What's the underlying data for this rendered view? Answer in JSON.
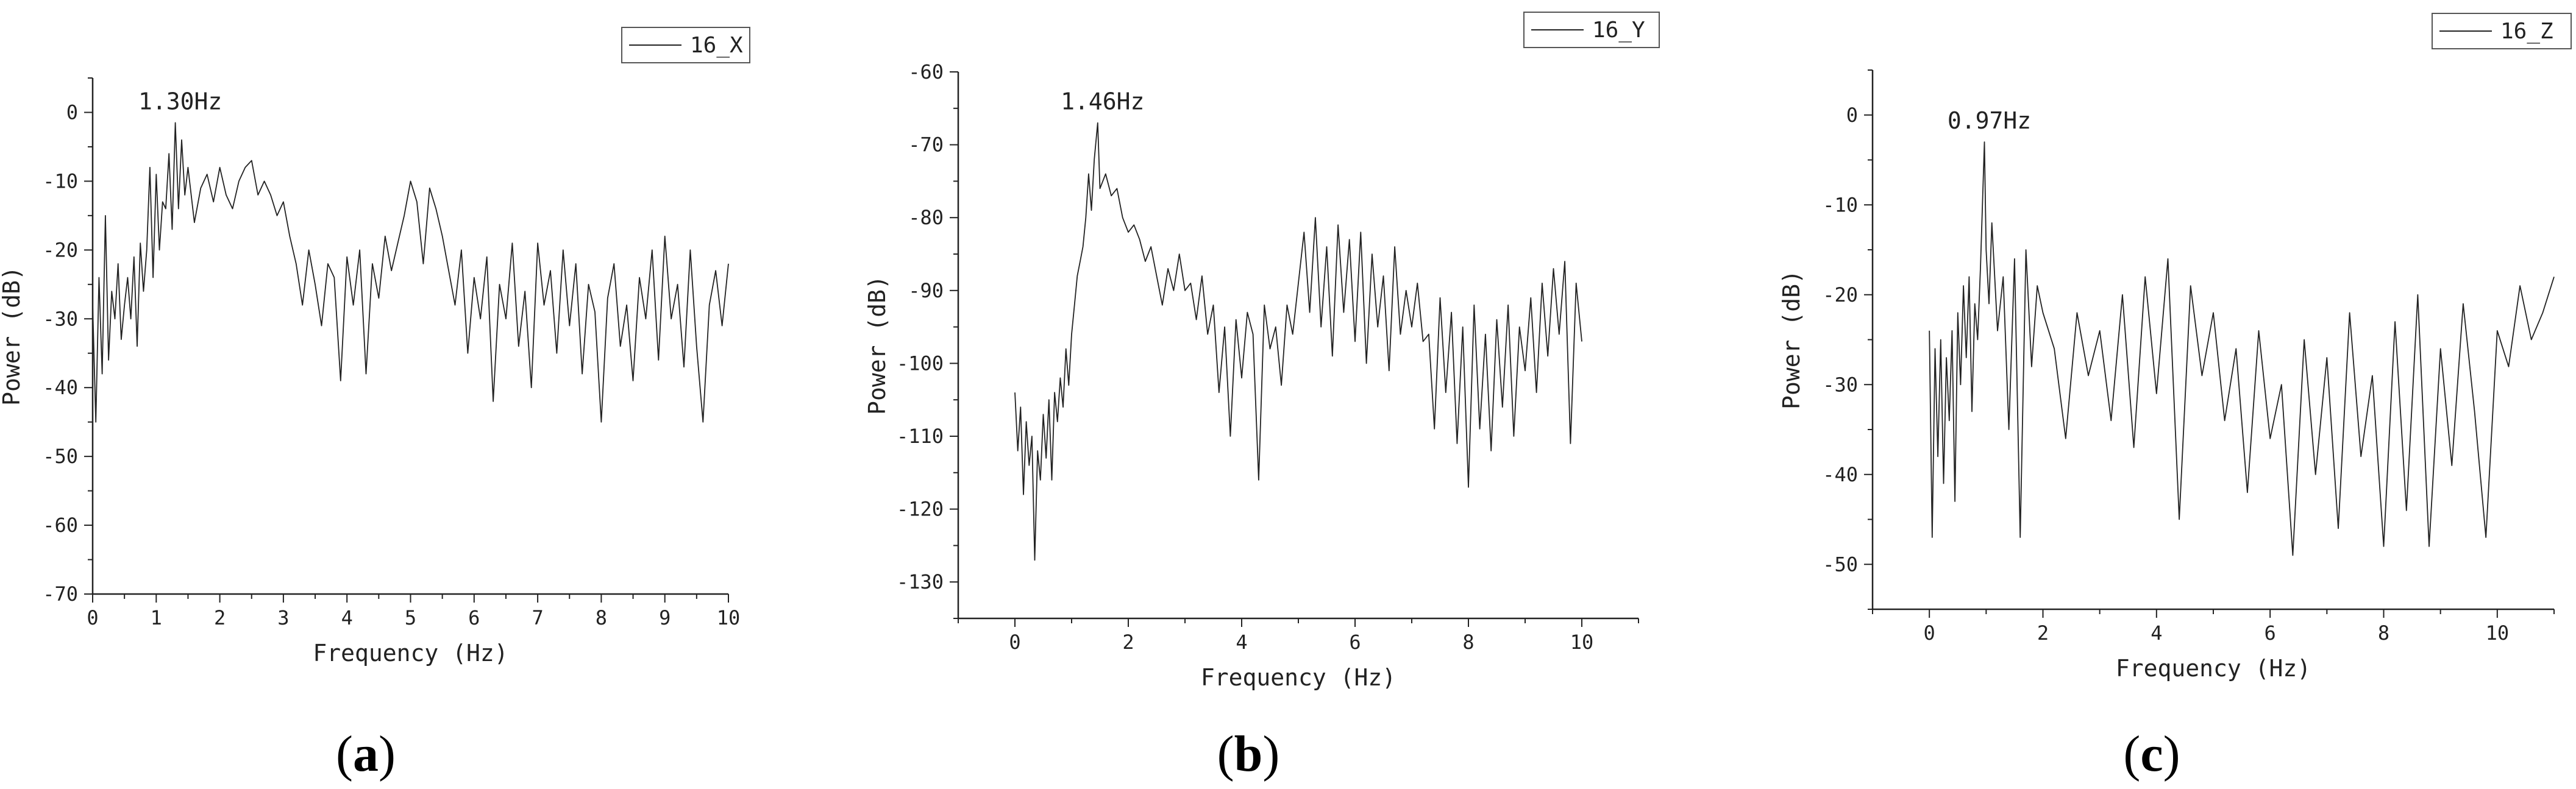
{
  "figure": {
    "panels": [
      {
        "label_open": "(",
        "label_letter": "a",
        "label_close": ")"
      },
      {
        "label_open": "(",
        "label_letter": "b",
        "label_close": ")"
      },
      {
        "label_open": "(",
        "label_letter": "c",
        "label_close": ")"
      }
    ]
  },
  "chart_data": [
    {
      "type": "line",
      "title": "",
      "xlabel": "Frequency (Hz)",
      "ylabel": "Power (dB)",
      "xlim": [
        0,
        10
      ],
      "ylim": [
        -70,
        5
      ],
      "xticks": [
        0,
        1,
        2,
        3,
        4,
        5,
        6,
        7,
        8,
        9,
        10
      ],
      "xtick_labels": [
        "0",
        "1",
        "2",
        "3",
        "4",
        "5",
        "6",
        "7",
        "8",
        "9",
        "10"
      ],
      "yticks": [
        0,
        -10,
        -20,
        -30,
        -40,
        -50,
        -60,
        -70
      ],
      "ytick_labels": [
        "0",
        "-10",
        "-20",
        "-30",
        "-40",
        "-50",
        "-60",
        "-70"
      ],
      "grid": false,
      "legend_position": "top-right",
      "line_color": "#222222",
      "annotation": {
        "text": "1.30Hz",
        "x": 1.3,
        "y": -1.5
      },
      "series": [
        {
          "name": "16_X",
          "x": [
            0,
            0.05,
            0.1,
            0.15,
            0.2,
            0.25,
            0.3,
            0.35,
            0.4,
            0.45,
            0.5,
            0.55,
            0.6,
            0.65,
            0.7,
            0.75,
            0.8,
            0.85,
            0.9,
            0.95,
            1,
            1.05,
            1.1,
            1.15,
            1.2,
            1.25,
            1.3,
            1.35,
            1.4,
            1.45,
            1.5,
            1.6,
            1.7,
            1.8,
            1.9,
            2,
            2.1,
            2.2,
            2.3,
            2.4,
            2.5,
            2.6,
            2.7,
            2.8,
            2.9,
            3,
            3.1,
            3.2,
            3.3,
            3.4,
            3.5,
            3.6,
            3.7,
            3.8,
            3.9,
            4,
            4.1,
            4.2,
            4.3,
            4.4,
            4.5,
            4.6,
            4.7,
            4.8,
            4.9,
            5,
            5.1,
            5.2,
            5.3,
            5.4,
            5.5,
            5.6,
            5.7,
            5.8,
            5.9,
            6,
            6.1,
            6.2,
            6.3,
            6.4,
            6.5,
            6.6,
            6.7,
            6.8,
            6.9,
            7,
            7.1,
            7.2,
            7.3,
            7.4,
            7.5,
            7.6,
            7.7,
            7.8,
            7.9,
            8,
            8.1,
            8.2,
            8.3,
            8.4,
            8.5,
            8.6,
            8.7,
            8.8,
            8.9,
            9,
            9.1,
            9.2,
            9.3,
            9.4,
            9.5,
            9.6,
            9.7,
            9.8,
            9.9,
            10
          ],
          "y": [
            -28,
            -45,
            -24,
            -38,
            -15,
            -36,
            -26,
            -30,
            -22,
            -33,
            -28,
            -24,
            -30,
            -21,
            -34,
            -19,
            -26,
            -20,
            -8,
            -24,
            -9,
            -20,
            -13,
            -14,
            -6,
            -17,
            -1.5,
            -14,
            -4,
            -12,
            -8,
            -16,
            -11,
            -9,
            -13,
            -8,
            -12,
            -14,
            -10,
            -8,
            -7,
            -12,
            -10,
            -12,
            -15,
            -13,
            -18,
            -22,
            -28,
            -20,
            -25,
            -31,
            -22,
            -24,
            -39,
            -21,
            -28,
            -20,
            -38,
            -22,
            -27,
            -18,
            -23,
            -19,
            -15,
            -10,
            -13,
            -22,
            -11,
            -14,
            -18,
            -23,
            -28,
            -20,
            -35,
            -24,
            -30,
            -21,
            -42,
            -25,
            -30,
            -19,
            -34,
            -26,
            -40,
            -19,
            -28,
            -23,
            -35,
            -20,
            -31,
            -22,
            -38,
            -25,
            -29,
            -45,
            -27,
            -22,
            -34,
            -28,
            -39,
            -24,
            -30,
            -20,
            -36,
            -18,
            -30,
            -25,
            -37,
            -20,
            -34,
            -45,
            -28,
            -23,
            -31,
            -22
          ]
        }
      ]
    },
    {
      "type": "line",
      "title": "",
      "xlabel": "Frequency (Hz)",
      "ylabel": "Power (dB)",
      "xlim": [
        -1,
        11
      ],
      "ylim": [
        -135,
        -60
      ],
      "xticks": [
        0,
        2,
        4,
        6,
        8,
        10
      ],
      "xtick_labels": [
        "0",
        "2",
        "4",
        "6",
        "8",
        "10"
      ],
      "yticks": [
        -60,
        -70,
        -80,
        -90,
        -100,
        -110,
        -120,
        -130
      ],
      "ytick_labels": [
        "-60",
        "-70",
        "-80",
        "-90",
        "-100",
        "-110",
        "-120",
        "-130"
      ],
      "grid": false,
      "legend_position": "top-right",
      "line_color": "#222222",
      "annotation": {
        "text": "1.46Hz",
        "x": 1.46,
        "y": -67
      },
      "series": [
        {
          "name": "16_Y",
          "x": [
            0,
            0.05,
            0.1,
            0.15,
            0.2,
            0.25,
            0.3,
            0.35,
            0.4,
            0.45,
            0.5,
            0.55,
            0.6,
            0.65,
            0.7,
            0.75,
            0.8,
            0.85,
            0.9,
            0.95,
            1,
            1.05,
            1.1,
            1.15,
            1.2,
            1.25,
            1.3,
            1.35,
            1.4,
            1.46,
            1.5,
            1.6,
            1.7,
            1.8,
            1.9,
            2,
            2.1,
            2.2,
            2.3,
            2.4,
            2.5,
            2.6,
            2.7,
            2.8,
            2.9,
            3,
            3.1,
            3.2,
            3.3,
            3.4,
            3.5,
            3.6,
            3.7,
            3.8,
            3.9,
            4,
            4.1,
            4.2,
            4.3,
            4.4,
            4.5,
            4.6,
            4.7,
            4.8,
            4.9,
            5,
            5.1,
            5.2,
            5.3,
            5.4,
            5.5,
            5.6,
            5.7,
            5.8,
            5.9,
            6,
            6.1,
            6.2,
            6.3,
            6.4,
            6.5,
            6.6,
            6.7,
            6.8,
            6.9,
            7,
            7.1,
            7.2,
            7.3,
            7.4,
            7.5,
            7.6,
            7.7,
            7.8,
            7.9,
            8,
            8.1,
            8.2,
            8.3,
            8.4,
            8.5,
            8.6,
            8.7,
            8.8,
            8.9,
            9,
            9.1,
            9.2,
            9.3,
            9.4,
            9.5,
            9.6,
            9.7,
            9.8,
            9.9,
            10
          ],
          "y": [
            -104,
            -112,
            -106,
            -118,
            -108,
            -114,
            -110,
            -127,
            -112,
            -116,
            -107,
            -113,
            -105,
            -116,
            -104,
            -108,
            -102,
            -106,
            -98,
            -103,
            -96,
            -92,
            -88,
            -86,
            -84,
            -80,
            -74,
            -79,
            -72,
            -67,
            -76,
            -74,
            -77,
            -76,
            -80,
            -82,
            -81,
            -83,
            -86,
            -84,
            -88,
            -92,
            -87,
            -90,
            -85,
            -90,
            -89,
            -94,
            -88,
            -96,
            -92,
            -104,
            -95,
            -110,
            -94,
            -102,
            -93,
            -96,
            -116,
            -92,
            -98,
            -95,
            -103,
            -92,
            -96,
            -89,
            -82,
            -93,
            -80,
            -95,
            -84,
            -99,
            -81,
            -93,
            -83,
            -97,
            -82,
            -100,
            -85,
            -95,
            -88,
            -101,
            -84,
            -96,
            -90,
            -95,
            -89,
            -97,
            -96,
            -109,
            -91,
            -104,
            -93,
            -111,
            -95,
            -117,
            -92,
            -109,
            -96,
            -112,
            -94,
            -106,
            -92,
            -110,
            -95,
            -101,
            -91,
            -104,
            -89,
            -99,
            -87,
            -96,
            -86,
            -111,
            -89,
            -97
          ]
        }
      ]
    },
    {
      "type": "line",
      "title": "",
      "xlabel": "Frequency (Hz)",
      "ylabel": "Power (dB)",
      "xlim": [
        -1,
        11
      ],
      "ylim": [
        -55,
        5
      ],
      "xticks": [
        0,
        2,
        4,
        6,
        8,
        10
      ],
      "xtick_labels": [
        "0",
        "2",
        "4",
        "6",
        "8",
        "10"
      ],
      "yticks": [
        0,
        -10,
        -20,
        -30,
        -40,
        -50
      ],
      "ytick_labels": [
        "0",
        "-10",
        "-20",
        "-30",
        "-40",
        "-50"
      ],
      "grid": false,
      "legend_position": "top-right",
      "line_color": "#222222",
      "annotation": {
        "text": "0.97Hz",
        "x": 0.97,
        "y": -3
      },
      "series": [
        {
          "name": "16_Z",
          "x": [
            0,
            0.05,
            0.1,
            0.15,
            0.2,
            0.25,
            0.3,
            0.35,
            0.4,
            0.45,
            0.5,
            0.55,
            0.6,
            0.65,
            0.7,
            0.75,
            0.8,
            0.85,
            0.9,
            0.97,
            1,
            1.05,
            1.1,
            1.2,
            1.3,
            1.4,
            1.5,
            1.6,
            1.7,
            1.8,
            1.9,
            2,
            2.2,
            2.4,
            2.6,
            2.8,
            3,
            3.2,
            3.4,
            3.6,
            3.8,
            4,
            4.2,
            4.4,
            4.6,
            4.8,
            5,
            5.2,
            5.4,
            5.6,
            5.8,
            6,
            6.2,
            6.4,
            6.6,
            6.8,
            7,
            7.2,
            7.4,
            7.6,
            7.8,
            8,
            8.2,
            8.4,
            8.6,
            8.8,
            9,
            9.2,
            9.4,
            9.6,
            9.8,
            10,
            10.2,
            10.4,
            10.6,
            10.8,
            11
          ],
          "y": [
            -24,
            -47,
            -26,
            -38,
            -25,
            -41,
            -27,
            -34,
            -24,
            -43,
            -22,
            -30,
            -19,
            -27,
            -18,
            -33,
            -21,
            -25,
            -17,
            -3,
            -15,
            -21,
            -12,
            -24,
            -18,
            -35,
            -16,
            -47,
            -15,
            -28,
            -19,
            -22,
            -26,
            -36,
            -22,
            -29,
            -24,
            -34,
            -20,
            -37,
            -18,
            -31,
            -16,
            -45,
            -19,
            -29,
            -22,
            -34,
            -26,
            -42,
            -24,
            -36,
            -30,
            -49,
            -25,
            -40,
            -27,
            -46,
            -22,
            -38,
            -29,
            -48,
            -23,
            -44,
            -20,
            -48,
            -26,
            -39,
            -21,
            -33,
            -47,
            -24,
            -28,
            -19,
            -25,
            -22,
            -18
          ]
        }
      ]
    }
  ]
}
